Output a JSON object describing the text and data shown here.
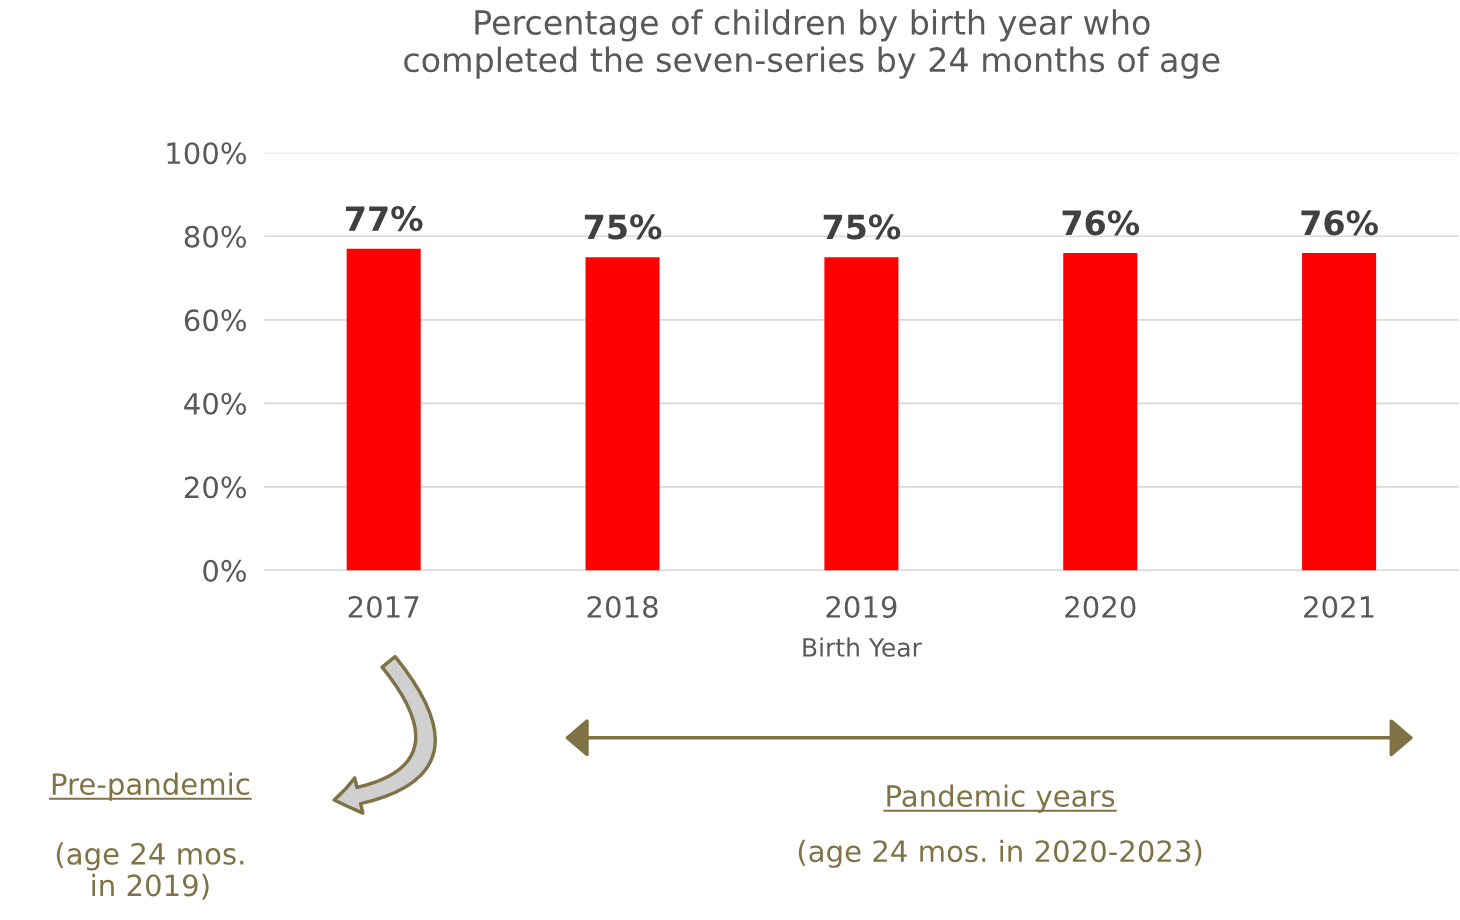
{
  "chart_data": {
    "type": "bar",
    "title": "Percentage of children by birth year who\ncompleted the seven-series by 24 months of age",
    "xlabel": "Birth Year",
    "categories": [
      "2017",
      "2018",
      "2019",
      "2020",
      "2021"
    ],
    "values": [
      77,
      75,
      75,
      76,
      76
    ],
    "value_labels": [
      "77%",
      "75%",
      "75%",
      "76%",
      "76%"
    ],
    "color": "#ff0000",
    "ylim": [
      0,
      100
    ],
    "yticks": [
      {
        "value": 0,
        "label": "0%"
      },
      {
        "value": 20,
        "label": "20%"
      },
      {
        "value": 40,
        "label": "40%"
      },
      {
        "value": 60,
        "label": "60%"
      },
      {
        "value": 80,
        "label": "80%"
      },
      {
        "value": 100,
        "label": "100%"
      }
    ],
    "grid": "y",
    "annotations": [
      "Pre-pandemic",
      "(age 24 mos.\nin 2019)",
      "Pandemic years",
      "(age 24 mos. in 2020-2023)"
    ]
  }
}
